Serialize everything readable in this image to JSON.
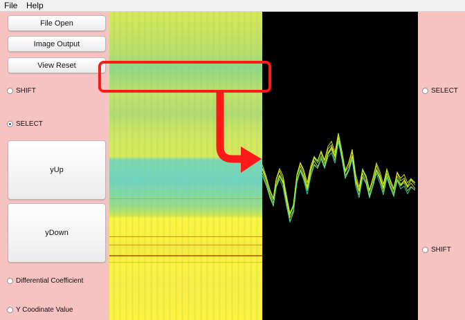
{
  "menu": {
    "file": "File",
    "help": "Help"
  },
  "left_panel": {
    "file_open": "File Open",
    "image_output": "Image Output",
    "view_reset": "View Reset",
    "shift": "SHIFT",
    "select": "SELECT",
    "y_up": "yUp",
    "y_down": "yDown",
    "differential_coefficient": "Differential Coefficient",
    "y_coordinate_value": "Y Coodinate Value"
  },
  "right_panel": {
    "select": "SELECT",
    "shift": "SHIFT"
  },
  "radio_state": {
    "left_shift": false,
    "left_select": true,
    "differential_coefficient": false,
    "y_coordinate_value": false,
    "right_select": false,
    "right_shift": false
  },
  "colors": {
    "panel_background": "#f6c2c2",
    "plot_background": "#000000",
    "annotation": "#ff0000",
    "heatmap_yellow": "#fcf43d",
    "heatmap_green": "#8ed88b",
    "heatmap_cyan": "#6fd3c2",
    "trace_yellow": "#e8f020",
    "trace_green": "#9ee830",
    "trace_cyan": "#3ad8c0"
  },
  "icons": {
    "annotation": "red-selection-box-with-arrow"
  }
}
